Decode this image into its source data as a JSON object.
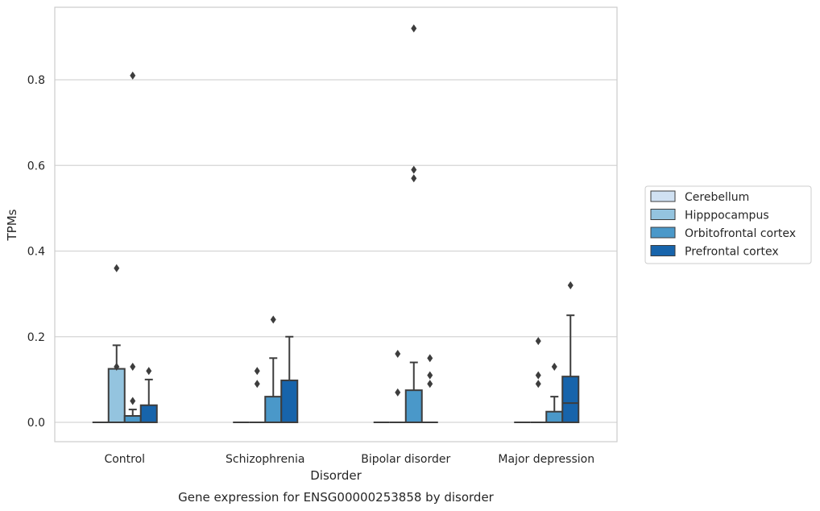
{
  "chart_data": {
    "type": "box",
    "title": "",
    "xlabel": "Disorder",
    "ylabel": "TPMs",
    "caption": "Gene expression for ENSG00000253858 by disorder",
    "categories": [
      "Control",
      "Schizophrenia",
      "Bipolar disorder",
      "Major depression"
    ],
    "ylim": [
      -0.045,
      0.97
    ],
    "yticks": [
      0.0,
      0.2,
      0.4,
      0.6,
      0.8
    ],
    "ytick_labels": [
      "0.0",
      "0.2",
      "0.4",
      "0.6",
      "0.8"
    ],
    "grid": "horizontal",
    "legend_position": "right",
    "series": [
      {
        "name": "Cerebellum",
        "color": "#d0e1f2",
        "boxes": [
          {
            "q1": 0,
            "median": 0,
            "q3": 0,
            "whisker_low": 0,
            "whisker_high": 0,
            "outliers": []
          },
          {
            "q1": 0,
            "median": 0,
            "q3": 0,
            "whisker_low": 0,
            "whisker_high": 0,
            "outliers": []
          },
          {
            "q1": 0,
            "median": 0,
            "q3": 0,
            "whisker_low": 0,
            "whisker_high": 0,
            "outliers": []
          },
          {
            "q1": 0,
            "median": 0,
            "q3": 0,
            "whisker_low": 0,
            "whisker_high": 0,
            "outliers": []
          }
        ]
      },
      {
        "name": "Hipppocampus",
        "color": "#94c4df",
        "boxes": [
          {
            "q1": 0,
            "median": 0,
            "q3": 0.125,
            "whisker_low": 0,
            "whisker_high": 0.18,
            "outliers": [
              0.36,
              0.13
            ]
          },
          {
            "q1": 0,
            "median": 0,
            "q3": 0,
            "whisker_low": 0,
            "whisker_high": 0,
            "outliers": [
              0.12,
              0.09
            ]
          },
          {
            "q1": 0,
            "median": 0,
            "q3": 0,
            "whisker_low": 0,
            "whisker_high": 0,
            "outliers": [
              0.16,
              0.07
            ]
          },
          {
            "q1": 0,
            "median": 0,
            "q3": 0,
            "whisker_low": 0,
            "whisker_high": 0,
            "outliers": [
              0.19,
              0.11,
              0.09
            ]
          }
        ]
      },
      {
        "name": "Orbitofrontal cortex",
        "color": "#4a98c9",
        "boxes": [
          {
            "q1": 0,
            "median": 0.015,
            "q3": 0.015,
            "whisker_low": 0,
            "whisker_high": 0.03,
            "outliers": [
              0.81,
              0.13,
              0.05
            ]
          },
          {
            "q1": 0,
            "median": 0,
            "q3": 0.06,
            "whisker_low": 0,
            "whisker_high": 0.15,
            "outliers": [
              0.24
            ]
          },
          {
            "q1": 0,
            "median": 0,
            "q3": 0.075,
            "whisker_low": 0,
            "whisker_high": 0.14,
            "outliers": [
              0.92,
              0.59,
              0.57
            ]
          },
          {
            "q1": 0,
            "median": 0,
            "q3": 0.025,
            "whisker_low": 0,
            "whisker_high": 0.06,
            "outliers": [
              0.13
            ]
          }
        ]
      },
      {
        "name": "Prefrontal cortex",
        "color": "#1764ab",
        "boxes": [
          {
            "q1": 0,
            "median": 0,
            "q3": 0.04,
            "whisker_low": 0,
            "whisker_high": 0.1,
            "outliers": [
              0.12
            ]
          },
          {
            "q1": 0,
            "median": 0,
            "q3": 0.098,
            "whisker_low": 0,
            "whisker_high": 0.2,
            "outliers": []
          },
          {
            "q1": 0,
            "median": 0,
            "q3": 0,
            "whisker_low": 0,
            "whisker_high": 0,
            "outliers": [
              0.15,
              0.11,
              0.09
            ]
          },
          {
            "q1": 0,
            "median": 0.045,
            "q3": 0.107,
            "whisker_low": 0,
            "whisker_high": 0.25,
            "outliers": [
              0.32
            ]
          }
        ]
      }
    ]
  }
}
